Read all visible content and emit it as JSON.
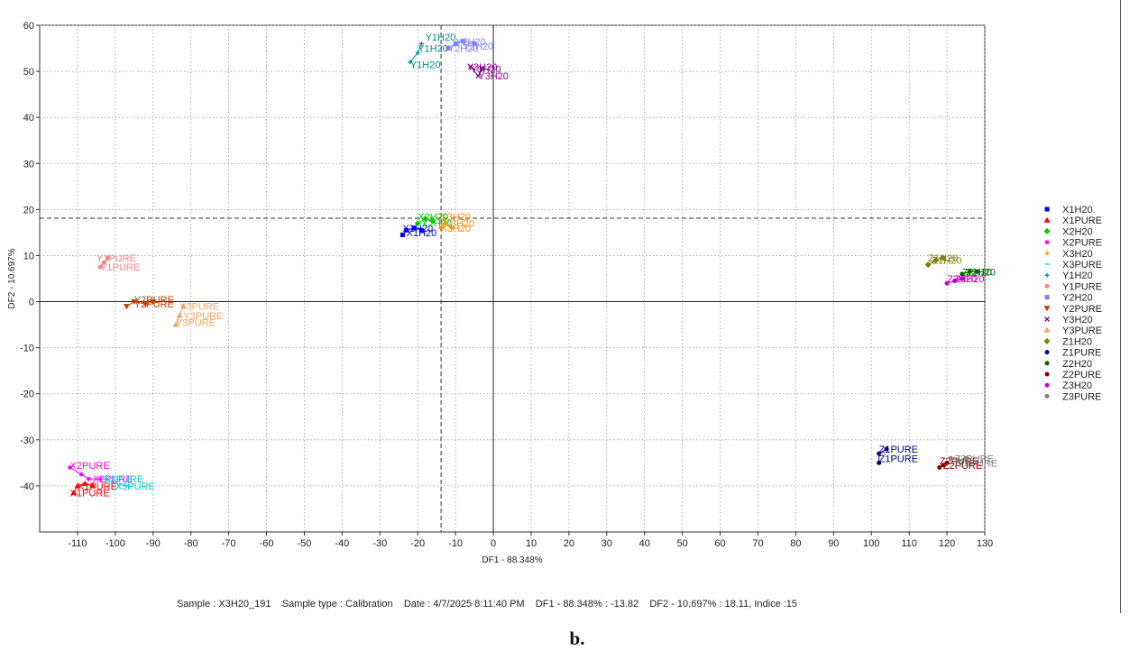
{
  "chart_data": {
    "type": "scatter",
    "xlabel": "DF1 - 88.348%",
    "ylabel": "DF2 - 10.697%",
    "xlim": [
      -120,
      130
    ],
    "ylim": [
      -50,
      60
    ],
    "xticks": [
      -110,
      -100,
      -90,
      -80,
      -70,
      -60,
      -50,
      -40,
      -30,
      -20,
      -10,
      0,
      10,
      20,
      30,
      40,
      50,
      60,
      70,
      80,
      90,
      100,
      110,
      120,
      130
    ],
    "yticks": [
      60,
      50,
      40,
      30,
      20,
      10,
      0,
      -10,
      -20,
      -30,
      -40
    ],
    "grid": true,
    "legend_position": "right",
    "crosshair": {
      "x": -13.82,
      "y": 18.11
    },
    "series": [
      {
        "name": "X1H20",
        "color": "#0000ff",
        "marker": "square",
        "points": [
          [
            -24,
            14.5
          ],
          [
            -23,
            15.5
          ],
          [
            -21,
            16
          ],
          [
            -19,
            15.5
          ]
        ],
        "labels": [
          [
            -24,
            16,
            "X1H20"
          ],
          [
            -23,
            15,
            "X1H20"
          ]
        ]
      },
      {
        "name": "X1PURE",
        "color": "#ff0000",
        "marker": "triangle",
        "points": [
          [
            -111,
            -41.5
          ],
          [
            -110,
            -40
          ],
          [
            -108,
            -39.5
          ],
          [
            -106,
            -40
          ]
        ],
        "labels": [
          [
            -110,
            -40,
            "X1PURE"
          ],
          [
            -112,
            -41.5,
            "X1PURE"
          ]
        ]
      },
      {
        "name": "X2H20",
        "color": "#00cc00",
        "marker": "diamond",
        "points": [
          [
            -20,
            17
          ],
          [
            -18,
            18
          ],
          [
            -16,
            17.5
          ]
        ],
        "labels": [
          [
            -20,
            18.5,
            "X2H20"
          ],
          [
            -19,
            17,
            "X2H20"
          ]
        ]
      },
      {
        "name": "X2PURE",
        "color": "#ff00ff",
        "marker": "star",
        "points": [
          [
            -112,
            -36
          ],
          [
            -109,
            -37.5
          ],
          [
            -107,
            -38.5
          ],
          [
            -104,
            -38.5
          ]
        ],
        "labels": [
          [
            -112,
            -35.5,
            "X2PURE"
          ],
          [
            -106,
            -38.5,
            "X2PURE"
          ]
        ]
      },
      {
        "name": "X3H20",
        "color": "#ff8c00",
        "marker": "plus",
        "points": [
          [
            -14,
            16
          ],
          [
            -13,
            17
          ],
          [
            -11,
            16
          ]
        ],
        "labels": [
          [
            -14,
            18.5,
            "X3H20"
          ],
          [
            -14,
            16,
            "X3H20"
          ],
          [
            -13,
            17,
            "X3H20"
          ]
        ]
      },
      {
        "name": "X3PURE",
        "color": "#00cccc",
        "marker": "dash",
        "points": [
          [
            -103,
            -38.5
          ],
          [
            -100,
            -39.5
          ],
          [
            -97,
            -40
          ]
        ],
        "labels": [
          [
            -103,
            -38.5,
            "X3PURE"
          ],
          [
            -100,
            -40,
            "X3PURE"
          ]
        ]
      },
      {
        "name": "Y1H20",
        "color": "#008b8b",
        "marker": "plus",
        "points": [
          [
            -22,
            52
          ],
          [
            -20,
            54
          ],
          [
            -19,
            56
          ]
        ],
        "labels": [
          [
            -18,
            57.5,
            "Y1H20"
          ],
          [
            -20,
            55,
            "Y1H20"
          ],
          [
            -22,
            51.5,
            "Y1H20"
          ]
        ]
      },
      {
        "name": "Y1PURE",
        "color": "#ff8080",
        "marker": "circle",
        "points": [
          [
            -104,
            7.5
          ],
          [
            -103,
            8.5
          ],
          [
            -102,
            9.5
          ]
        ],
        "labels": [
          [
            -105,
            9.5,
            "Y1PURE"
          ],
          [
            -104,
            7.5,
            "Y1PURE"
          ]
        ]
      },
      {
        "name": "Y2H20",
        "color": "#8080ff",
        "marker": "square",
        "points": [
          [
            -12,
            55
          ],
          [
            -10,
            56
          ],
          [
            -8,
            56.5
          ],
          [
            -5,
            56
          ]
        ],
        "labels": [
          [
            -10,
            56.5,
            "Y2H20"
          ],
          [
            -8,
            55.5,
            "Y2H20"
          ],
          [
            -12,
            55,
            "Y2H20"
          ]
        ]
      },
      {
        "name": "Y2PURE",
        "color": "#c04000",
        "marker": "triangle-down",
        "points": [
          [
            -97,
            -1
          ],
          [
            -95,
            0
          ],
          [
            -92,
            -0.5
          ],
          [
            -90,
            0
          ]
        ],
        "labels": [
          [
            -95,
            0.5,
            "Y2PURE"
          ],
          [
            -95,
            -0.5,
            "Y2PURE"
          ]
        ]
      },
      {
        "name": "Y3H20",
        "color": "#8b008b",
        "marker": "x",
        "points": [
          [
            -6,
            51
          ],
          [
            -4,
            49
          ],
          [
            -3,
            50.5
          ]
        ],
        "labels": [
          [
            -7,
            51,
            "Y3H20"
          ],
          [
            -4,
            49,
            "Y3H20"
          ],
          [
            -6,
            50.5,
            "Y3H20"
          ]
        ]
      },
      {
        "name": "Y3PURE",
        "color": "#f4a460",
        "marker": "triangle",
        "points": [
          [
            -84,
            -5
          ],
          [
            -83,
            -3
          ],
          [
            -82,
            -1
          ]
        ],
        "labels": [
          [
            -83,
            -1,
            "Y3PURE"
          ],
          [
            -82,
            -3,
            "Y3PURE"
          ],
          [
            -84,
            -4.5,
            "Y3PURE"
          ]
        ]
      },
      {
        "name": "Z1H20",
        "color": "#808000",
        "marker": "diamond",
        "points": [
          [
            115,
            8
          ],
          [
            117,
            9
          ],
          [
            119,
            9.5
          ]
        ],
        "labels": [
          [
            115,
            9.5,
            "Z1H20"
          ],
          [
            116,
            9,
            "Z1H20"
          ]
        ]
      },
      {
        "name": "Z1PURE",
        "color": "#000080",
        "marker": "circle",
        "points": [
          [
            102,
            -35
          ],
          [
            102,
            -33
          ],
          [
            104,
            -32
          ]
        ],
        "labels": [
          [
            102,
            -32,
            "Z1PURE"
          ],
          [
            102,
            -34,
            "Z1PURE"
          ]
        ]
      },
      {
        "name": "Z2H20",
        "color": "#006400",
        "marker": "circle",
        "points": [
          [
            124,
            6
          ],
          [
            126,
            6.5
          ],
          [
            128,
            6.5
          ]
        ],
        "labels": [
          [
            124,
            6.5,
            "Z2H20"
          ],
          [
            125,
            6.5,
            "Z2H20"
          ]
        ]
      },
      {
        "name": "Z2PURE",
        "color": "#8b0000",
        "marker": "circle",
        "points": [
          [
            118,
            -36
          ],
          [
            119,
            -35.5
          ],
          [
            120,
            -35
          ]
        ],
        "labels": [
          [
            118,
            -34.5,
            "Z2PURE"
          ],
          [
            119,
            -35.5,
            "Z2PURE"
          ]
        ]
      },
      {
        "name": "Z3H20",
        "color": "#cc00cc",
        "marker": "circle",
        "points": [
          [
            120,
            4
          ],
          [
            122,
            4.5
          ],
          [
            124,
            5
          ]
        ],
        "labels": [
          [
            120,
            5,
            "Z3H20"
          ],
          [
            122,
            5,
            "Z3H20"
          ]
        ]
      },
      {
        "name": "Z3PURE",
        "color": "#808080",
        "marker": "circle",
        "points": [
          [
            121,
            -34
          ],
          [
            123,
            -34.5
          ],
          [
            125,
            -34
          ]
        ],
        "labels": [
          [
            122,
            -34,
            "Z3PURE"
          ],
          [
            123,
            -35,
            "Z3PURE"
          ]
        ]
      }
    ]
  },
  "footer": {
    "info": "Sample : X3H20_191    Sample type : Calibration    Date : 4/7/2025 8:11:40 PM    DF1 - 88.348% : -13.82    DF2 - 10.697% : 18.11, Indice :15",
    "panel_label": "b."
  }
}
